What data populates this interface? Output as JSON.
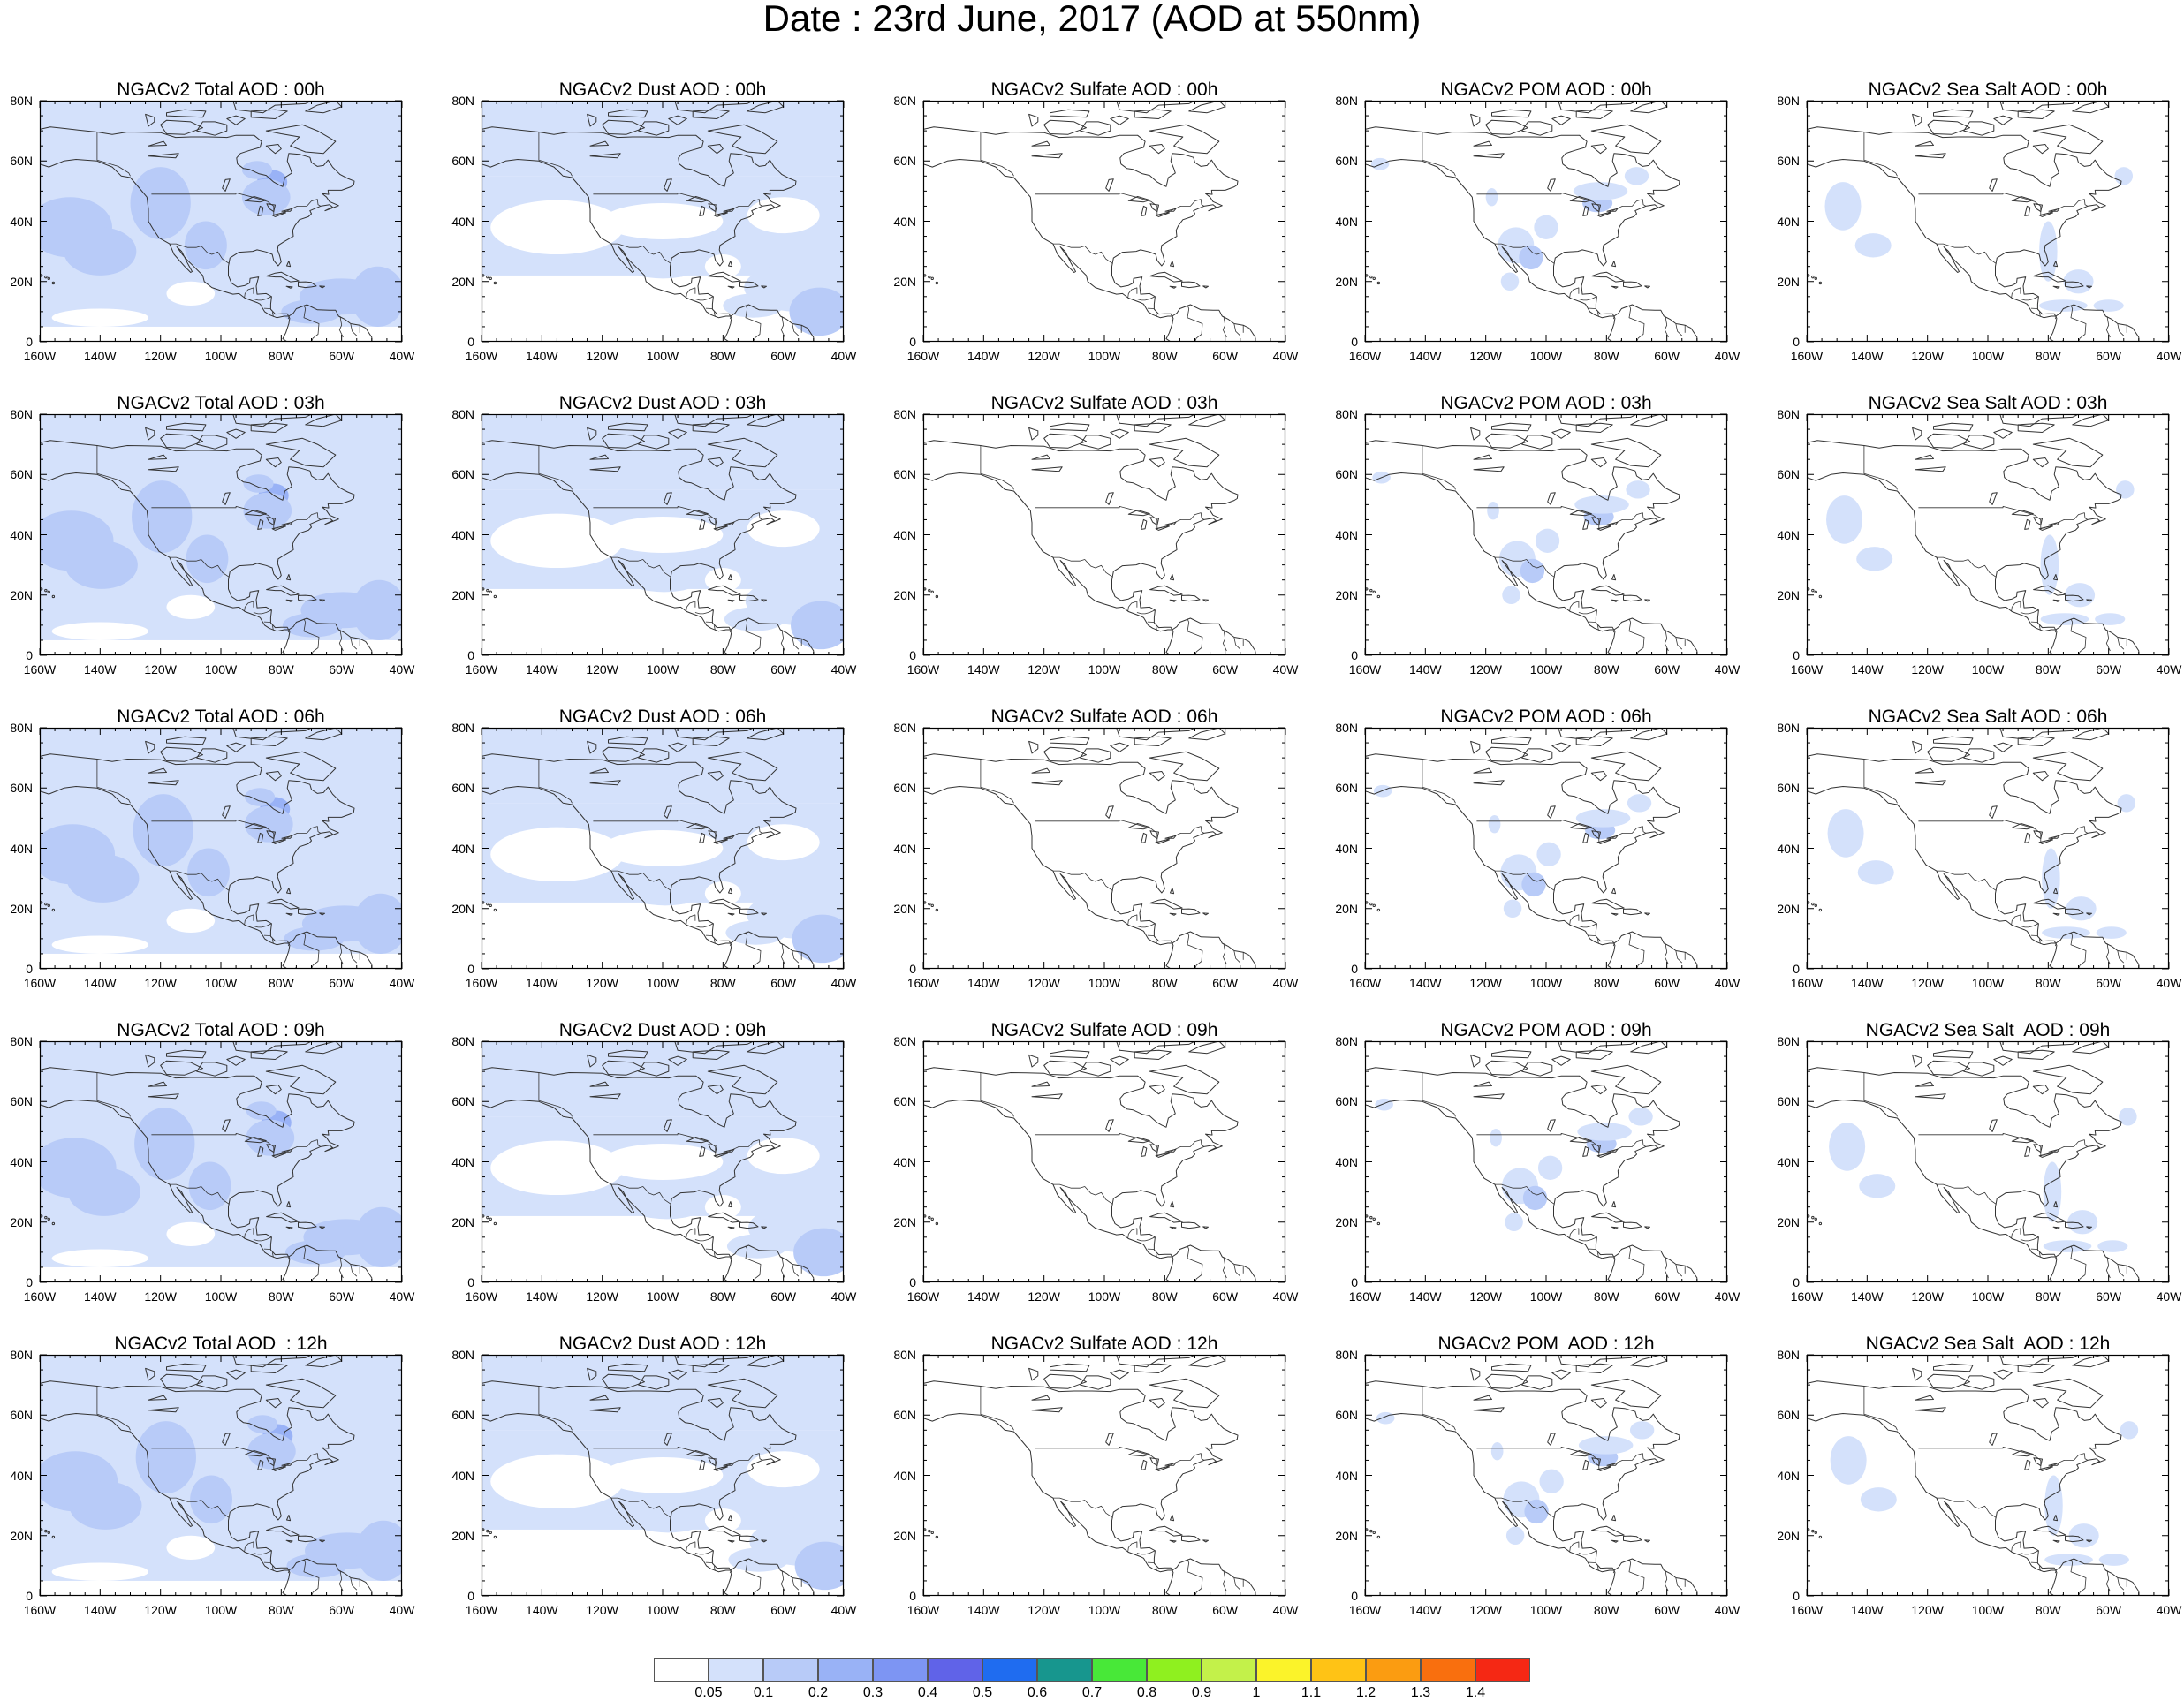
{
  "title": "Date : 23rd June, 2017 (AOD at 550nm)",
  "map": {
    "lat_labels": [
      "80N",
      "60N",
      "40N",
      "20N",
      "0"
    ],
    "lon_labels": [
      "160W",
      "140W",
      "120W",
      "100W",
      "80W",
      "60W",
      "40W"
    ],
    "lon_range": [
      -160,
      -40
    ],
    "lat_range": [
      0,
      80
    ]
  },
  "panels": [
    [
      {
        "title": "NGACv2 Total AOD : 00h",
        "kind": "total"
      },
      {
        "title": "NGACv2 Dust AOD : 00h",
        "kind": "dust"
      },
      {
        "title": "NGACv2 Sulfate AOD : 00h",
        "kind": "sulfate"
      },
      {
        "title": "NGACv2 POM AOD : 00h",
        "kind": "pom"
      },
      {
        "title": "NGACv2 Sea Salt AOD : 00h",
        "kind": "seasalt"
      }
    ],
    [
      {
        "title": "NGACv2 Total AOD : 03h",
        "kind": "total"
      },
      {
        "title": "NGACv2 Dust AOD : 03h",
        "kind": "dust"
      },
      {
        "title": "NGACv2 Sulfate AOD : 03h",
        "kind": "sulfate"
      },
      {
        "title": "NGACv2 POM AOD : 03h",
        "kind": "pom"
      },
      {
        "title": "NGACv2 Sea Salt AOD : 03h",
        "kind": "seasalt"
      }
    ],
    [
      {
        "title": "NGACv2 Total AOD : 06h",
        "kind": "total"
      },
      {
        "title": "NGACv2 Dust AOD : 06h",
        "kind": "dust"
      },
      {
        "title": "NGACv2 Sulfate AOD : 06h",
        "kind": "sulfate"
      },
      {
        "title": "NGACv2 POM AOD : 06h",
        "kind": "pom"
      },
      {
        "title": "NGACv2 Sea Salt AOD : 06h",
        "kind": "seasalt"
      }
    ],
    [
      {
        "title": "NGACv2 Total AOD : 09h",
        "kind": "total"
      },
      {
        "title": "NGACv2 Dust AOD : 09h",
        "kind": "dust"
      },
      {
        "title": "NGACv2 Sulfate AOD : 09h",
        "kind": "sulfate"
      },
      {
        "title": "NGACv2 POM AOD : 09h",
        "kind": "pom"
      },
      {
        "title": "NGACv2 Sea Salt  AOD : 09h",
        "kind": "seasalt"
      }
    ],
    [
      {
        "title": "NGACv2 Total AOD  : 12h",
        "kind": "total"
      },
      {
        "title": "NGACv2 Dust AOD : 12h",
        "kind": "dust"
      },
      {
        "title": "NGACv2 Sulfate AOD : 12h",
        "kind": "sulfate"
      },
      {
        "title": "NGACv2 POM  AOD : 12h",
        "kind": "pom"
      },
      {
        "title": "NGACv2 Sea Salt  AOD : 12h",
        "kind": "seasalt"
      }
    ]
  ],
  "colorbar": {
    "labels": [
      "0.05",
      "0.1",
      "0.2",
      "0.3",
      "0.4",
      "0.5",
      "0.6",
      "0.7",
      "0.8",
      "0.9",
      "1",
      "1.1",
      "1.2",
      "1.3",
      "1.4"
    ],
    "colors": [
      "#ffffff",
      "#d4e1fb",
      "#b8cbf8",
      "#99b2f6",
      "#7d95f3",
      "#6063e8",
      "#1f6cf0",
      "#17968e",
      "#48e838",
      "#8ff01f",
      "#c3f14a",
      "#fbf32a",
      "#ffc315",
      "#fb9c11",
      "#f96f0e",
      "#f52814"
    ]
  },
  "colors": {
    "aod_low": "#d4e1fb",
    "aod_mid": "#b8cbf8",
    "aod_high": "#99b2f6",
    "coastline": "#333333",
    "frame": "#000000"
  }
}
